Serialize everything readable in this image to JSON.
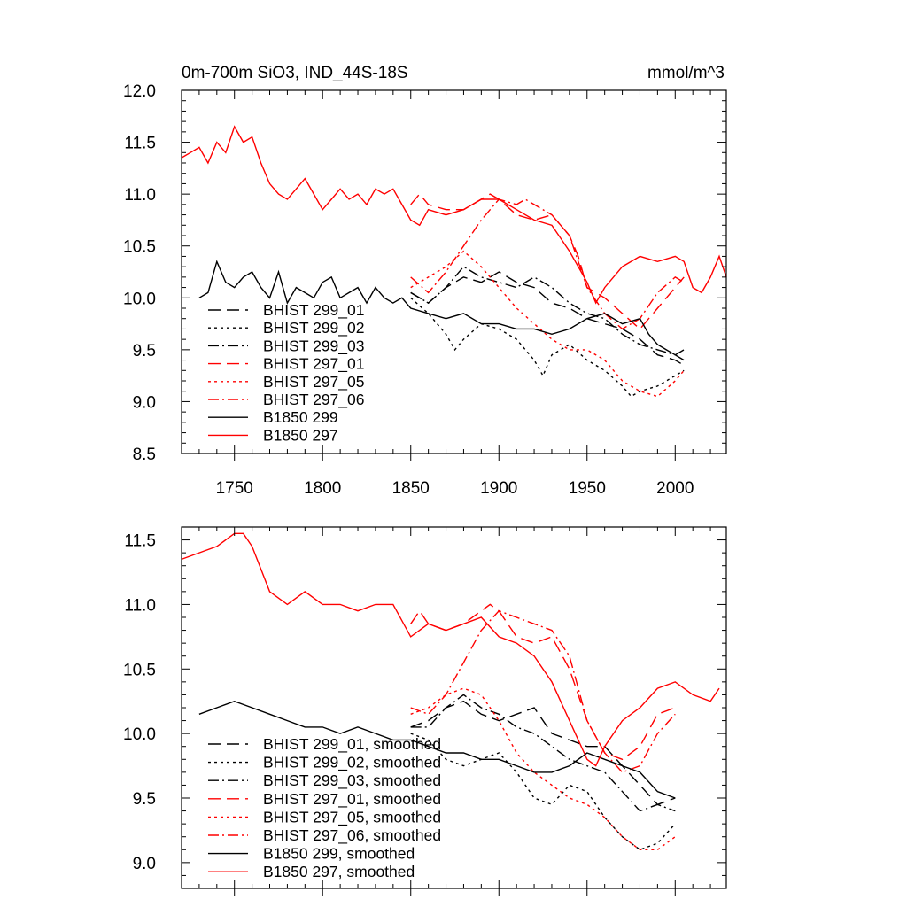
{
  "chart_data": [
    {
      "type": "line",
      "title": "0m-700m SiO3, IND_44S-18S",
      "units": "mmol/m^3",
      "xlim": [
        1720,
        2029
      ],
      "ylim": [
        8.5,
        12.0
      ],
      "xticks": [
        "1750",
        "1800",
        "1850",
        "1900",
        "1950",
        "2000"
      ],
      "yticks": [
        "8.5",
        "9.0",
        "9.5",
        "10.0",
        "10.5",
        "11.0",
        "11.5",
        "12.0"
      ],
      "legend_position": "bottom-left",
      "grid": false,
      "series": [
        {
          "name": "BHIST 299_01",
          "color": "#000000",
          "dash": "dashed",
          "x": [
            1850,
            1860,
            1870,
            1880,
            1890,
            1900,
            1910,
            1920,
            1930,
            1940,
            1950,
            1960,
            1970,
            1980,
            1990,
            2000,
            2005
          ],
          "y": [
            10.05,
            9.95,
            10.1,
            10.2,
            10.15,
            10.25,
            10.15,
            10.1,
            9.95,
            9.9,
            9.8,
            9.75,
            9.7,
            9.6,
            9.45,
            9.4,
            9.35
          ]
        },
        {
          "name": "BHIST 299_02",
          "color": "#000000",
          "dash": "dotted",
          "x": [
            1850,
            1860,
            1870,
            1875,
            1880,
            1890,
            1900,
            1910,
            1920,
            1925,
            1930,
            1940,
            1950,
            1960,
            1970,
            1975,
            1980,
            1990,
            2000,
            2005
          ],
          "y": [
            10.0,
            9.85,
            9.65,
            9.5,
            9.6,
            9.75,
            9.7,
            9.6,
            9.4,
            9.25,
            9.45,
            9.55,
            9.4,
            9.3,
            9.15,
            9.05,
            9.1,
            9.15,
            9.25,
            9.3
          ]
        },
        {
          "name": "BHIST 299_03",
          "color": "#000000",
          "dash": "dashdot",
          "x": [
            1850,
            1860,
            1870,
            1880,
            1890,
            1900,
            1910,
            1920,
            1930,
            1940,
            1950,
            1960,
            1970,
            1980,
            1990,
            2000,
            2005
          ],
          "y": [
            10.05,
            9.95,
            10.1,
            10.3,
            10.2,
            10.15,
            10.1,
            10.2,
            10.1,
            9.95,
            9.85,
            9.8,
            9.65,
            9.55,
            9.5,
            9.45,
            9.5
          ]
        },
        {
          "name": "BHIST 297_01",
          "color": "#ff0000",
          "dash": "dashed",
          "x": [
            1850,
            1855,
            1860,
            1870,
            1880,
            1890,
            1895,
            1900,
            1910,
            1920,
            1930,
            1940,
            1945,
            1950,
            1960,
            1970,
            1980,
            1990,
            2000,
            2005
          ],
          "y": [
            10.9,
            11.0,
            10.9,
            10.85,
            10.85,
            10.95,
            11.0,
            10.95,
            10.8,
            10.75,
            10.8,
            10.6,
            10.4,
            10.1,
            10.0,
            9.85,
            9.7,
            9.9,
            10.1,
            10.2
          ]
        },
        {
          "name": "BHIST 297_05",
          "color": "#ff0000",
          "dash": "dotted",
          "x": [
            1850,
            1860,
            1870,
            1880,
            1890,
            1900,
            1910,
            1920,
            1930,
            1940,
            1950,
            1960,
            1970,
            1980,
            1990,
            2000,
            2005
          ],
          "y": [
            10.1,
            10.2,
            10.3,
            10.45,
            10.3,
            10.1,
            9.9,
            9.75,
            9.6,
            9.5,
            9.5,
            9.4,
            9.2,
            9.1,
            9.05,
            9.2,
            9.3
          ]
        },
        {
          "name": "BHIST 297_06",
          "color": "#ff0000",
          "dash": "dashdot",
          "x": [
            1850,
            1860,
            1870,
            1880,
            1890,
            1900,
            1910,
            1915,
            1920,
            1930,
            1940,
            1950,
            1960,
            1970,
            1980,
            1990,
            2000,
            2005
          ],
          "y": [
            10.2,
            10.05,
            10.25,
            10.5,
            10.75,
            10.95,
            10.9,
            10.95,
            10.9,
            10.8,
            10.6,
            10.1,
            9.85,
            9.7,
            9.8,
            10.05,
            10.2,
            10.15
          ]
        },
        {
          "name": "B1850 299",
          "color": "#000000",
          "dash": "solid",
          "x": [
            1730,
            1735,
            1740,
            1745,
            1750,
            1755,
            1760,
            1765,
            1770,
            1775,
            1780,
            1785,
            1790,
            1795,
            1800,
            1805,
            1810,
            1815,
            1820,
            1825,
            1830,
            1835,
            1840,
            1845,
            1850,
            1860,
            1870,
            1880,
            1890,
            1900,
            1910,
            1920,
            1930,
            1940,
            1950,
            1960,
            1970,
            1980,
            1985,
            1990,
            1995,
            2000,
            2005
          ],
          "y": [
            10.0,
            10.05,
            10.35,
            10.15,
            10.1,
            10.2,
            10.25,
            10.1,
            10.0,
            10.25,
            9.95,
            10.1,
            10.05,
            10.0,
            10.15,
            10.2,
            10.0,
            10.05,
            10.1,
            9.95,
            10.1,
            10.0,
            9.95,
            10.0,
            9.9,
            9.85,
            9.8,
            9.85,
            9.75,
            9.75,
            9.7,
            9.7,
            9.65,
            9.7,
            9.8,
            9.85,
            9.75,
            9.8,
            9.65,
            9.55,
            9.5,
            9.45,
            9.4
          ]
        },
        {
          "name": "B1850 297",
          "color": "#ff0000",
          "dash": "solid",
          "x": [
            1720,
            1725,
            1730,
            1735,
            1740,
            1745,
            1750,
            1755,
            1760,
            1765,
            1770,
            1775,
            1780,
            1785,
            1790,
            1795,
            1800,
            1805,
            1810,
            1815,
            1820,
            1825,
            1830,
            1835,
            1840,
            1845,
            1850,
            1855,
            1860,
            1870,
            1880,
            1890,
            1900,
            1910,
            1920,
            1930,
            1940,
            1950,
            1955,
            1960,
            1970,
            1980,
            1990,
            2000,
            2005,
            2010,
            2015,
            2020,
            2025,
            2029
          ],
          "y": [
            11.35,
            11.4,
            11.45,
            11.3,
            11.5,
            11.4,
            11.65,
            11.5,
            11.55,
            11.3,
            11.1,
            11.0,
            10.95,
            11.05,
            11.15,
            11.0,
            10.85,
            10.95,
            11.05,
            10.95,
            11.0,
            10.9,
            11.05,
            11.0,
            11.05,
            10.9,
            10.75,
            10.7,
            10.85,
            10.8,
            10.85,
            10.95,
            10.95,
            10.85,
            10.75,
            10.7,
            10.45,
            10.15,
            9.95,
            10.1,
            10.3,
            10.4,
            10.35,
            10.4,
            10.35,
            10.1,
            10.05,
            10.2,
            10.4,
            10.2
          ]
        }
      ]
    },
    {
      "type": "line",
      "xlim": [
        1720,
        2029
      ],
      "ylim": [
        8.8,
        11.6
      ],
      "yticks": [
        "9.0",
        "9.5",
        "10.0",
        "10.5",
        "11.0",
        "11.5"
      ],
      "legend_position": "bottom-left",
      "grid": false,
      "series": [
        {
          "name": "BHIST 299_01, smoothed",
          "color": "#000000",
          "dash": "dashed",
          "x": [
            1850,
            1860,
            1870,
            1880,
            1890,
            1900,
            1910,
            1920,
            1930,
            1940,
            1950,
            1960,
            1970,
            1980,
            1990,
            2000
          ],
          "y": [
            10.05,
            10.1,
            10.2,
            10.25,
            10.15,
            10.1,
            10.15,
            10.2,
            10.0,
            9.95,
            9.9,
            9.9,
            9.75,
            9.6,
            9.45,
            9.5
          ]
        },
        {
          "name": "BHIST 299_02, smoothed",
          "color": "#000000",
          "dash": "dotted",
          "x": [
            1850,
            1860,
            1870,
            1880,
            1890,
            1900,
            1910,
            1920,
            1930,
            1940,
            1950,
            1960,
            1970,
            1980,
            1990,
            2000
          ],
          "y": [
            10.0,
            9.95,
            9.8,
            9.75,
            9.8,
            9.85,
            9.7,
            9.5,
            9.45,
            9.6,
            9.55,
            9.35,
            9.2,
            9.1,
            9.15,
            9.3
          ]
        },
        {
          "name": "BHIST 299_03, smoothed",
          "color": "#000000",
          "dash": "dashdot",
          "x": [
            1850,
            1860,
            1870,
            1880,
            1890,
            1900,
            1910,
            1920,
            1930,
            1940,
            1950,
            1960,
            1970,
            1980,
            1990,
            2000
          ],
          "y": [
            10.05,
            10.05,
            10.2,
            10.3,
            10.2,
            10.15,
            10.05,
            10.0,
            9.9,
            9.8,
            9.75,
            9.7,
            9.55,
            9.4,
            9.45,
            9.4
          ]
        },
        {
          "name": "BHIST 297_01, smoothed",
          "color": "#ff0000",
          "dash": "dashed",
          "x": [
            1850,
            1855,
            1860,
            1870,
            1880,
            1890,
            1895,
            1900,
            1910,
            1920,
            1930,
            1940,
            1950,
            1960,
            1970,
            1980,
            1990,
            2000
          ],
          "y": [
            10.85,
            10.95,
            10.85,
            10.8,
            10.85,
            10.95,
            11.0,
            10.95,
            10.75,
            10.7,
            10.75,
            10.5,
            10.1,
            9.85,
            9.8,
            9.9,
            10.15,
            10.2
          ]
        },
        {
          "name": "BHIST 297_05, smoothed",
          "color": "#ff0000",
          "dash": "dotted",
          "x": [
            1850,
            1860,
            1870,
            1880,
            1890,
            1900,
            1910,
            1920,
            1930,
            1940,
            1950,
            1960,
            1970,
            1980,
            1990,
            2000
          ],
          "y": [
            10.15,
            10.2,
            10.3,
            10.35,
            10.3,
            10.1,
            9.85,
            9.7,
            9.6,
            9.5,
            9.45,
            9.35,
            9.2,
            9.1,
            9.1,
            9.2
          ]
        },
        {
          "name": "BHIST 297_06, smoothed",
          "color": "#ff0000",
          "dash": "dashdot",
          "x": [
            1850,
            1860,
            1870,
            1880,
            1890,
            1900,
            1910,
            1920,
            1930,
            1940,
            1950,
            1960,
            1970,
            1980,
            1990,
            2000
          ],
          "y": [
            10.2,
            10.15,
            10.3,
            10.55,
            10.8,
            10.95,
            10.9,
            10.85,
            10.8,
            10.6,
            10.1,
            9.85,
            9.7,
            9.75,
            10.0,
            10.15
          ]
        },
        {
          "name": "B1850 299, smoothed",
          "color": "#000000",
          "dash": "solid",
          "x": [
            1730,
            1740,
            1750,
            1760,
            1770,
            1780,
            1790,
            1800,
            1810,
            1820,
            1830,
            1840,
            1850,
            1860,
            1870,
            1880,
            1890,
            1900,
            1910,
            1920,
            1930,
            1940,
            1950,
            1960,
            1970,
            1980,
            1990,
            2000
          ],
          "y": [
            10.15,
            10.2,
            10.25,
            10.2,
            10.15,
            10.1,
            10.05,
            10.05,
            10.0,
            10.05,
            10.0,
            9.95,
            9.95,
            9.9,
            9.85,
            9.85,
            9.8,
            9.8,
            9.75,
            9.7,
            9.7,
            9.75,
            9.85,
            9.8,
            9.75,
            9.7,
            9.55,
            9.5
          ]
        },
        {
          "name": "B1850 297, smoothed",
          "color": "#ff0000",
          "dash": "solid",
          "x": [
            1720,
            1730,
            1740,
            1745,
            1750,
            1755,
            1760,
            1770,
            1780,
            1790,
            1800,
            1810,
            1820,
            1830,
            1840,
            1850,
            1855,
            1860,
            1870,
            1880,
            1890,
            1900,
            1910,
            1920,
            1930,
            1940,
            1950,
            1955,
            1960,
            1970,
            1980,
            1990,
            2000,
            2010,
            2020,
            2025
          ],
          "y": [
            11.35,
            11.4,
            11.45,
            11.5,
            11.55,
            11.55,
            11.45,
            11.1,
            11.0,
            11.1,
            11.0,
            11.0,
            10.95,
            11.0,
            11.0,
            10.75,
            10.8,
            10.85,
            10.8,
            10.85,
            10.9,
            10.75,
            10.7,
            10.6,
            10.4,
            10.1,
            9.8,
            9.75,
            9.9,
            10.1,
            10.2,
            10.35,
            10.4,
            10.3,
            10.25,
            10.35
          ]
        }
      ]
    }
  ]
}
